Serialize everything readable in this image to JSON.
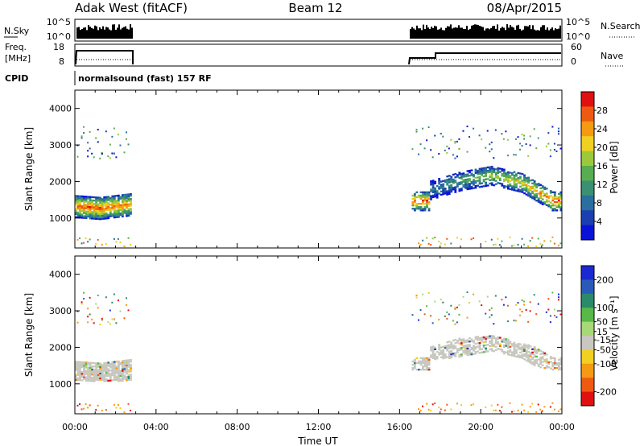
{
  "header": {
    "station": "Adak West (fitACF)",
    "beam": "Beam 12",
    "date": "08/Apr/2015"
  },
  "params": {
    "nsky_label": "N.Sky",
    "nsearch_label": "N.Search",
    "freq_label_line1": "Freq.",
    "freq_label_line2": "[MHz]",
    "nave_label": "Nave",
    "cpid_label": "CPID",
    "cpid_text": "normalsound (fast) 157 RF",
    "nsky_ticks": [
      "10^5",
      "10^0"
    ],
    "nsearch_ticks": [
      "10^5",
      "10^0"
    ],
    "freq_ticks": [
      "18",
      "8"
    ],
    "nave_ticks": [
      "60",
      "0"
    ]
  },
  "colors": {
    "power": [
      "#0a12d8",
      "#1b3fb0",
      "#2a6fa0",
      "#3a9070",
      "#58ad50",
      "#9cc83c",
      "#f0d020",
      "#f59a12",
      "#ef5a12",
      "#e01010"
    ],
    "velocity_neg": [
      "#e01010",
      "#ef5a12",
      "#f59a12",
      "#f0d020"
    ],
    "velocity_pos": [
      "#a8d878",
      "#58b848",
      "#2a8a6a",
      "#2a5ab8",
      "#1a2ad0"
    ],
    "ground_scatter": "#c8c8c0"
  },
  "chart_data": [
    {
      "type": "heatmap",
      "panel": "power",
      "ylabel": "Slant Range [km]",
      "xlabel": "Time UT",
      "x_ticks": [
        "00:00",
        "04:00",
        "08:00",
        "12:00",
        "16:00",
        "20:00",
        "00:00"
      ],
      "y_ticks": [
        "1000",
        "2000",
        "3000",
        "4000"
      ],
      "ylim": [
        180,
        4500
      ],
      "xlim_hours": [
        0,
        24
      ],
      "colorbar_label": "Power [dB]",
      "colorbar_ticks": [
        "4",
        "8",
        "12",
        "16",
        "20",
        "24",
        "28"
      ],
      "colorbar_range": [
        0,
        32
      ],
      "observation_intervals_hours": [
        [
          0.0,
          2.75
        ],
        [
          16.6,
          24.0
        ]
      ],
      "main_echo_band": [
        {
          "t": 0.0,
          "range_km": 1300,
          "power_db": 28
        },
        {
          "t": 1.2,
          "range_km": 1250,
          "power_db": 28
        },
        {
          "t": 2.7,
          "range_km": 1350,
          "power_db": 26
        },
        {
          "t": 17.5,
          "range_km": 1750,
          "power_db": 8
        },
        {
          "t": 19.0,
          "range_km": 2000,
          "power_db": 14
        },
        {
          "t": 20.5,
          "range_km": 2150,
          "power_db": 18
        },
        {
          "t": 22.0,
          "range_km": 1950,
          "power_db": 22
        },
        {
          "t": 23.5,
          "range_km": 1450,
          "power_db": 28
        }
      ]
    },
    {
      "type": "heatmap",
      "panel": "velocity",
      "ylabel": "Slant Range [km]",
      "xlabel": "Time UT",
      "x_ticks": [
        "00:00",
        "04:00",
        "08:00",
        "12:00",
        "16:00",
        "20:00",
        "00:00"
      ],
      "y_ticks": [
        "1000",
        "2000",
        "3000",
        "4000"
      ],
      "ylim": [
        180,
        4500
      ],
      "colorbar_label": "Velocity [m s⁻¹]",
      "colorbar_ticks": [
        "200",
        "100",
        "50",
        "15",
        "-15",
        "-50",
        "-100",
        "-200"
      ],
      "colorbar_range": [
        -250,
        250
      ],
      "main_echo_band": [
        {
          "t": 0.0,
          "range_km": 1350,
          "velocity": 0
        },
        {
          "t": 2.7,
          "range_km": 1350,
          "velocity": 0
        },
        {
          "t": 17.5,
          "range_km": 1900,
          "velocity": 30
        },
        {
          "t": 20.5,
          "range_km": 2050,
          "velocity": 0
        },
        {
          "t": 23.5,
          "range_km": 1600,
          "velocity": 0
        }
      ]
    }
  ]
}
